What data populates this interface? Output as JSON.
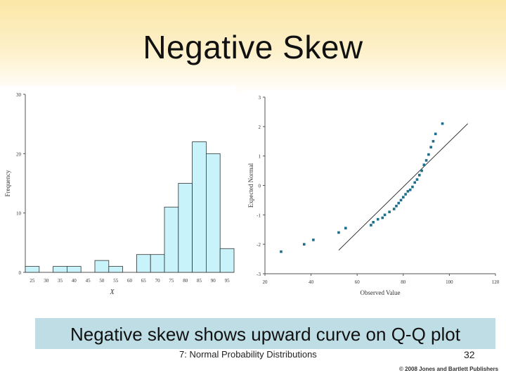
{
  "slide": {
    "title": "Negative Skew",
    "caption": "Negative skew shows upward curve on Q-Q plot",
    "footer_text": "7: Normal Probability Distributions",
    "page_number": "32",
    "copyright": "© 2008 Jones and Bartlett Publishers"
  },
  "chart_data": [
    {
      "type": "bar",
      "title": "",
      "xlabel": "X",
      "ylabel": "Frequency",
      "categories": [
        "25",
        "30",
        "35",
        "40",
        "45",
        "50",
        "55",
        "60",
        "65",
        "70",
        "75",
        "80",
        "85",
        "90",
        "95"
      ],
      "values": [
        1,
        0,
        1,
        1,
        0,
        2,
        1,
        0,
        3,
        3,
        11,
        15,
        22,
        20,
        4
      ],
      "ylim": [
        0,
        30
      ],
      "yticks": [
        "0",
        "10",
        "20",
        "30"
      ],
      "grid": false
    },
    {
      "type": "scatter",
      "title": "",
      "xlabel": "Observed Value",
      "ylabel": "Expected Normal",
      "xlim": [
        20,
        120
      ],
      "ylim": [
        -3,
        3
      ],
      "xticks": [
        "20",
        "40",
        "60",
        "80",
        "100",
        "120"
      ],
      "yticks": [
        "-3",
        "-2",
        "-1",
        "0",
        "1",
        "2",
        "3"
      ],
      "reference_line": [
        [
          52,
          -2.2
        ],
        [
          108,
          2.1
        ]
      ],
      "points": [
        [
          27,
          -2.25
        ],
        [
          37,
          -2.0
        ],
        [
          41,
          -1.85
        ],
        [
          52,
          -1.6
        ],
        [
          55,
          -1.45
        ],
        [
          66,
          -1.35
        ],
        [
          67,
          -1.25
        ],
        [
          69,
          -1.15
        ],
        [
          71,
          -1.1
        ],
        [
          72,
          -1.0
        ],
        [
          74,
          -0.9
        ],
        [
          76,
          -0.8
        ],
        [
          77,
          -0.7
        ],
        [
          78,
          -0.6
        ],
        [
          79,
          -0.5
        ],
        [
          80,
          -0.4
        ],
        [
          81,
          -0.3
        ],
        [
          82,
          -0.2
        ],
        [
          83,
          -0.15
        ],
        [
          84,
          -0.05
        ],
        [
          85,
          0.1
        ],
        [
          86,
          0.2
        ],
        [
          87,
          0.35
        ],
        [
          88,
          0.5
        ],
        [
          89,
          0.7
        ],
        [
          90,
          0.85
        ],
        [
          91,
          1.05
        ],
        [
          92,
          1.3
        ],
        [
          93,
          1.5
        ],
        [
          94,
          1.75
        ],
        [
          97,
          2.1
        ]
      ],
      "grid": false
    }
  ]
}
